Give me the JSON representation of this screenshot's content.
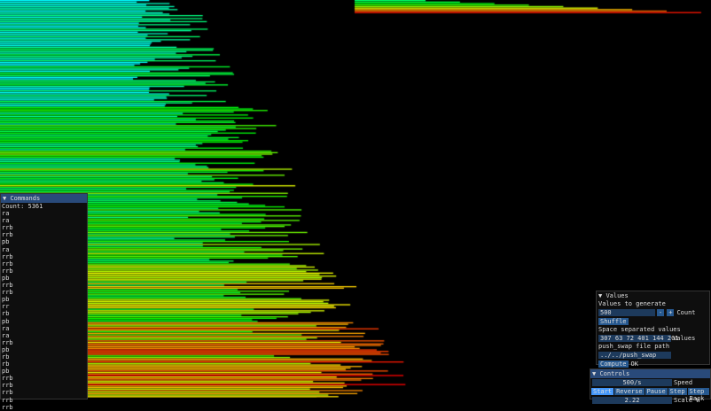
{
  "visualization": {
    "stack_a_color_low": "#00e5ff",
    "stack_a_color_mid": "#22ff22",
    "stack_a_color_high": "#ff2200"
  },
  "commands": {
    "title": "Commands",
    "count_label": "Count: 5361",
    "items": [
      "ra",
      "ra",
      "rrb",
      "rrb",
      "pb",
      "ra",
      "rrb",
      "rrb",
      "rrb",
      "pb",
      "rrb",
      "rrb",
      "pb",
      "rr",
      "rb",
      "pb",
      "ra",
      "ra",
      "rrb",
      "pb",
      "rb",
      "rb",
      "pb",
      "rrb",
      "rrb",
      "rrb",
      "rrb",
      "rrb"
    ]
  },
  "values": {
    "title": "Values",
    "generate_label": "Values to generate",
    "count_value": "500",
    "minus": "-",
    "plus": "+",
    "count_label": "Count",
    "shuffle": "Shuffle",
    "space_label": "Space separated values",
    "values_input": "307 63 72 401 144 201",
    "values_label": "Values",
    "path_label": "push_swap file path",
    "path_value": "../../push_swap",
    "compute": "Compute",
    "status": "OK"
  },
  "controls": {
    "title": "Controls",
    "speed_value": "500/s",
    "speed_label": "Speed",
    "start": "Start",
    "reverse": "Reverse",
    "pause": "Pause",
    "step": "Step",
    "step_back": "Step Back",
    "scale_value": "2.22",
    "scale_label": "Scale W"
  }
}
